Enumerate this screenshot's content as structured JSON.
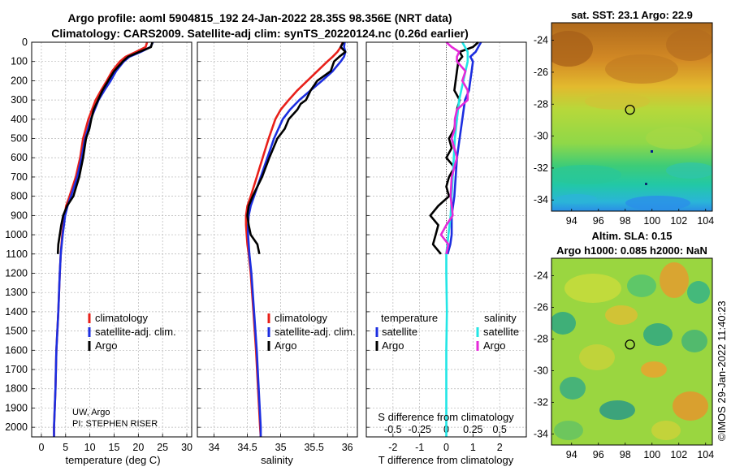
{
  "title_line1": "Argo profile: aoml 5904815_192 24-Jan-2022 28.35S 98.356E (NRT data)",
  "title_line2": "Climatology: CARS2009. Satellite-adj clim: synTS_20220124.nc (0.26d earlier)",
  "colors": {
    "climatology": "#e8201a",
    "satellite": "#1c2ee0",
    "argo": "#000000",
    "sal_satellite": "#22e6e6",
    "sal_argo": "#e52ad9"
  },
  "depth_ticks": [
    "0",
    "100",
    "200",
    "300",
    "400",
    "500",
    "600",
    "700",
    "800",
    "900",
    "1000",
    "1100",
    "1200",
    "1300",
    "1400",
    "1500",
    "1600",
    "1700",
    "1800",
    "1900",
    "2000"
  ],
  "chart_data": [
    {
      "type": "line",
      "xlabel": "temperature (deg C)",
      "xlim": [
        -2,
        31
      ],
      "ylim": [
        0,
        2050
      ],
      "xticks": [
        "0",
        "5",
        "10",
        "15",
        "20",
        "25",
        "30"
      ],
      "legend": [
        "climatology",
        "satellite-adj. clim.",
        "Argo"
      ],
      "footnote1": "UW, Argo",
      "footnote2": "PI: STEPHEN RISER",
      "series": [
        {
          "name": "climatology",
          "depth": [
            0,
            25,
            50,
            75,
            100,
            150,
            200,
            250,
            300,
            400,
            500,
            600,
            700,
            800,
            850,
            900,
            1000,
            1050,
            1100,
            1200,
            1400,
            1600,
            1800,
            2000,
            2050
          ],
          "values": [
            21.8,
            21.5,
            19.5,
            17.4,
            16.2,
            14.6,
            13.5,
            12.3,
            11.2,
            9.7,
            8.6,
            8.0,
            7.1,
            5.8,
            5.1,
            4.8,
            4.3,
            4.15,
            4.0,
            3.8,
            3.5,
            3.1,
            2.9,
            2.6,
            2.6
          ]
        },
        {
          "name": "satellite-adj. clim.",
          "depth": [
            0,
            25,
            50,
            75,
            100,
            150,
            200,
            250,
            300,
            400,
            500,
            600,
            700,
            800,
            850,
            900,
            1000,
            1050,
            1100,
            1200,
            1400,
            1600,
            1800,
            2000,
            2050
          ],
          "values": [
            23.0,
            22.5,
            20.5,
            18.2,
            17.0,
            15.4,
            14.3,
            13.0,
            11.8,
            10.2,
            9.0,
            8.3,
            7.4,
            6.1,
            5.4,
            4.9,
            4.4,
            4.2,
            4.0,
            3.8,
            3.5,
            3.1,
            2.9,
            2.6,
            2.6
          ]
        },
        {
          "name": "Argo",
          "depth": [
            0,
            25,
            50,
            75,
            100,
            150,
            200,
            250,
            300,
            350,
            400,
            450,
            500,
            550,
            600,
            650,
            700,
            750,
            800,
            850,
            900,
            950,
            1000,
            1050,
            1100
          ],
          "values": [
            22.9,
            22.6,
            20.2,
            17.9,
            16.8,
            15.0,
            13.8,
            12.6,
            11.7,
            10.8,
            10.3,
            9.9,
            9.2,
            8.9,
            8.6,
            8.2,
            7.8,
            7.2,
            6.6,
            5.3,
            4.5,
            4.1,
            3.8,
            3.5,
            3.4
          ]
        }
      ]
    },
    {
      "type": "line",
      "xlabel": "salinity",
      "xlim": [
        33.75,
        36.15
      ],
      "ylim": [
        0,
        2050
      ],
      "xticks": [
        "34",
        "34.5",
        "35",
        "35.5",
        "36"
      ],
      "legend": [
        "climatology",
        "satellite-adj. clim.",
        "Argo"
      ],
      "series": [
        {
          "name": "climatology",
          "depth": [
            0,
            25,
            50,
            75,
            100,
            150,
            200,
            250,
            300,
            350,
            400,
            500,
            600,
            700,
            800,
            850,
            900,
            950,
            1000,
            1050,
            1100,
            1200,
            1400,
            1600,
            1800,
            2000,
            2050
          ],
          "values": [
            35.93,
            35.9,
            35.85,
            35.78,
            35.7,
            35.55,
            35.4,
            35.25,
            35.12,
            35.0,
            34.92,
            34.82,
            34.73,
            34.64,
            34.55,
            34.5,
            34.48,
            34.48,
            34.49,
            34.5,
            34.52,
            34.55,
            34.59,
            34.63,
            34.66,
            34.69,
            34.7
          ]
        },
        {
          "name": "satellite-adj. clim.",
          "depth": [
            0,
            25,
            50,
            75,
            100,
            150,
            200,
            250,
            300,
            350,
            400,
            500,
            600,
            700,
            800,
            850,
            900,
            950,
            1000,
            1050,
            1100,
            1200,
            1400,
            1600,
            1800,
            2000,
            2050
          ],
          "values": [
            35.96,
            35.95,
            35.97,
            35.95,
            35.9,
            35.78,
            35.62,
            35.45,
            35.28,
            35.14,
            35.03,
            34.9,
            34.8,
            34.7,
            34.6,
            34.55,
            34.52,
            34.51,
            34.51,
            34.52,
            34.53,
            34.56,
            34.6,
            34.64,
            34.67,
            34.7,
            34.7
          ]
        },
        {
          "name": "Argo",
          "depth": [
            0,
            25,
            50,
            75,
            100,
            150,
            200,
            250,
            300,
            320,
            350,
            400,
            450,
            500,
            600,
            700,
            800,
            850,
            900,
            950,
            1000,
            1050,
            1100
          ],
          "values": [
            35.94,
            35.9,
            35.97,
            35.88,
            35.8,
            35.75,
            35.55,
            35.45,
            35.38,
            35.3,
            35.25,
            35.12,
            35.06,
            34.95,
            34.83,
            34.72,
            34.58,
            34.52,
            34.5,
            34.52,
            34.55,
            34.65,
            34.68
          ]
        }
      ]
    },
    {
      "type": "line",
      "xlabel_bottom": "T difference from climatology",
      "xlabel_top": "S difference from climatology",
      "xlim": [
        -3,
        3
      ],
      "ylim": [
        0,
        2050
      ],
      "xticks": [
        "-2",
        "-1",
        "0",
        "1",
        "2"
      ],
      "xticks_s": [
        "-0.5",
        "-0.25",
        "0",
        "0.25",
        "0.5"
      ],
      "legend_t_title": "temperature",
      "legend_s_title": "salinity",
      "legend_t": [
        "satellite",
        "Argo"
      ],
      "legend_s": [
        "satellite",
        "Argo"
      ],
      "series": [
        {
          "name": "T satellite",
          "depth": [
            0,
            25,
            50,
            75,
            100,
            150,
            200,
            250,
            300,
            400,
            500,
            600,
            700,
            800,
            900,
            1000,
            1050,
            1100
          ],
          "values": [
            1.3,
            1.2,
            1.1,
            0.9,
            1.0,
            0.95,
            0.9,
            0.85,
            0.7,
            0.6,
            0.5,
            0.4,
            0.35,
            0.3,
            0.2,
            0.2,
            0.15,
            0.05
          ]
        },
        {
          "name": "T Argo",
          "depth": [
            0,
            25,
            50,
            75,
            100,
            150,
            200,
            250,
            300,
            350,
            400,
            450,
            500,
            550,
            600,
            650,
            700,
            750,
            800,
            850,
            900,
            950,
            1000,
            1050,
            1100
          ],
          "values": [
            1.2,
            1.0,
            0.5,
            0.6,
            0.45,
            0.4,
            0.35,
            0.3,
            0.5,
            0.4,
            0.35,
            0.3,
            0.1,
            0.2,
            0.0,
            0.3,
            0.1,
            0.0,
            0.1,
            -0.3,
            -0.6,
            -0.3,
            -0.4,
            -0.5,
            -0.2
          ]
        },
        {
          "name": "S satellite",
          "depth": [
            0,
            50,
            100,
            200,
            300,
            400,
            500,
            600,
            700,
            800,
            900,
            1000,
            1100,
            1200,
            1400,
            1600,
            1800,
            2000,
            2050
          ],
          "values": [
            0.15,
            0.2,
            0.2,
            0.16,
            0.12,
            0.1,
            0.08,
            0.07,
            0.06,
            0.05,
            0.04,
            0.02,
            0.0,
            0.0,
            0.005,
            0.0,
            0.0,
            0.0,
            0.0
          ]
        },
        {
          "name": "S Argo",
          "depth": [
            0,
            25,
            50,
            75,
            100,
            150,
            200,
            250,
            300,
            350,
            400,
            450,
            500,
            600,
            700,
            800,
            850,
            900,
            950,
            1000,
            1050,
            1100
          ],
          "values": [
            0.0,
            0.05,
            0.12,
            0.1,
            0.1,
            0.18,
            0.15,
            0.2,
            0.2,
            0.1,
            0.08,
            0.08,
            0.05,
            0.1,
            0.05,
            0.04,
            0.05,
            0.06,
            0.0,
            -0.05,
            0.02,
            0.0
          ]
        }
      ]
    }
  ],
  "maps": [
    {
      "title": "sat. SST: 23.1 Argo: 22.9",
      "title2": "",
      "xticks": [
        "94",
        "96",
        "98",
        "100",
        "102",
        "104"
      ],
      "yticks": [
        "-24",
        "-26",
        "-28",
        "-30",
        "-32",
        "-34"
      ],
      "marker_lon": 98.356,
      "marker_lat": -28.35
    },
    {
      "title": "Altim. SLA: 0.15",
      "title2": "Argo h1000: 0.085 h2000: NaN",
      "xticks": [
        "94",
        "96",
        "98",
        "100",
        "102",
        "104"
      ],
      "yticks": [
        "-24",
        "-26",
        "-28",
        "-30",
        "-32",
        "-34"
      ],
      "marker_lon": 98.356,
      "marker_lat": -28.35
    }
  ],
  "credit": "©IMOS 29-Jan-2022 11:40:23"
}
